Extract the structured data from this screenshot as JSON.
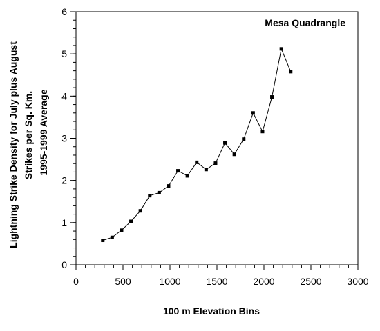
{
  "chart_data": {
    "type": "line",
    "title": "",
    "annotation": "Mesa  Quadrangle",
    "xlabel": "100 m Elevation Bins",
    "ylabel_lines": [
      "Lightning Strike Density for July plus August",
      "Strikes per Sq. Km.",
      "1995-1999 Average"
    ],
    "xlim": [
      0,
      3000
    ],
    "ylim": [
      0,
      6
    ],
    "x_ticks": [
      0,
      500,
      1000,
      1500,
      2000,
      2500,
      3000
    ],
    "y_ticks": [
      0,
      1,
      2,
      3,
      4,
      5,
      6
    ],
    "x_minor_step": 100,
    "y_minor_step": 0.2,
    "grid": false,
    "marker": "square",
    "series": [
      {
        "x": [
          285,
          385,
          485,
          585,
          685,
          785,
          885,
          985,
          1085,
          1185,
          1285,
          1385,
          1485,
          1585,
          1685,
          1785,
          1885,
          1985,
          2085,
          2185,
          2285
        ],
        "y": [
          0.58,
          0.65,
          0.82,
          1.03,
          1.28,
          1.64,
          1.71,
          1.87,
          2.23,
          2.11,
          2.43,
          2.26,
          2.41,
          2.89,
          2.62,
          2.98,
          3.6,
          3.16,
          3.98,
          5.12,
          4.58
        ]
      }
    ]
  }
}
